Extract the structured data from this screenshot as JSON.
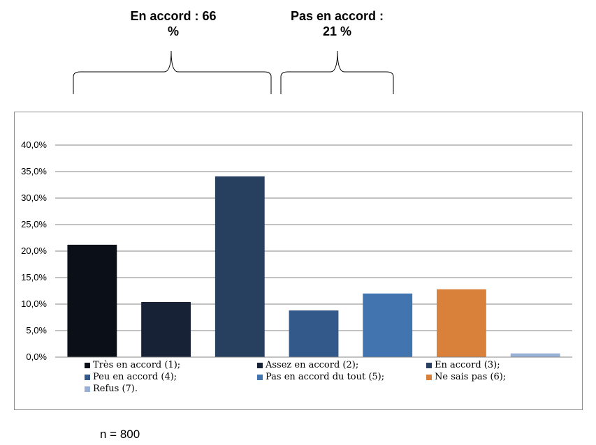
{
  "groups": {
    "agree": {
      "line1": "En accord : 66",
      "line2": "%"
    },
    "disagree": {
      "line1": "Pas en accord :",
      "line2": "21 %"
    }
  },
  "sample_note": "n = 800",
  "chart_data": {
    "type": "bar",
    "title": "",
    "xlabel": "",
    "ylabel": "",
    "ylim": [
      0,
      40
    ],
    "y_ticks": [
      "0,0%",
      "5,0%",
      "10,0%",
      "15,0%",
      "20,0%",
      "25,0%",
      "30,0%",
      "35,0%",
      "40,0%"
    ],
    "grid": true,
    "legend_position": "bottom",
    "categories": [
      "Très en accord (1);",
      "Assez en accord (2);",
      "En accord (3);",
      "Peu en accord (4);",
      "Pas en accord du tout (5);",
      "Ne sais pas (6);",
      "Refus (7)."
    ],
    "values": [
      21.2,
      10.4,
      34.1,
      8.8,
      12.0,
      12.8,
      0.7
    ],
    "colors": [
      "#0b0f17",
      "#172236",
      "#27405f",
      "#33598a",
      "#4274b0",
      "#d9813b",
      "#98b0d6"
    ]
  }
}
